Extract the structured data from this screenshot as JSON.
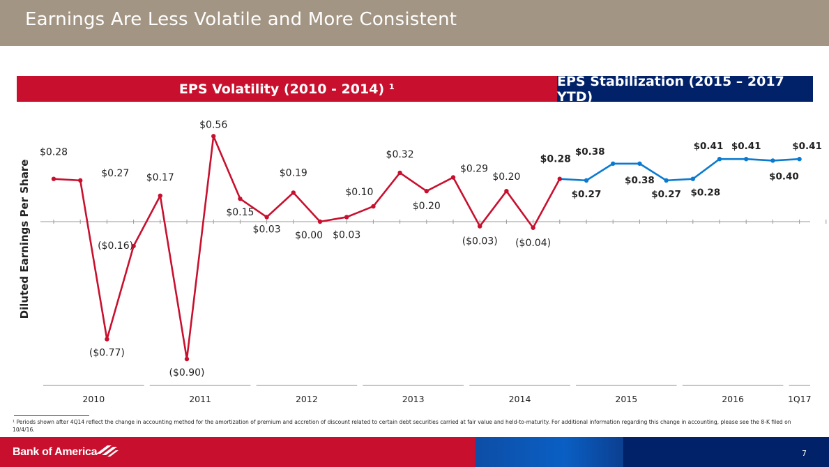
{
  "title": "Earnings Are Less Volatile and More Consistent",
  "banners": {
    "left": "EPS Volatility (2010 - 2014) ¹",
    "right": "EPS Stabilization (2015 – 2017 YTD)"
  },
  "colors": {
    "red": "#c8102e",
    "blue": "#0a7ad0",
    "navy": "#012169",
    "title_bg": "#a39583"
  },
  "chart_data": {
    "type": "line",
    "ylabel": "Diluted Earnings Per Share",
    "ylim": [
      -1.0,
      0.62
    ],
    "grid": false,
    "x_groups": [
      "2010",
      "2011",
      "2012",
      "2013",
      "2014",
      "2015",
      "2016",
      "1Q17"
    ],
    "series": [
      {
        "name": "EPS Volatility (2010 - 2014)",
        "color": "#c8102e",
        "values": [
          0.28,
          0.27,
          -0.77,
          -0.16,
          0.17,
          -0.9,
          0.56,
          0.15,
          0.03,
          0.19,
          0.0,
          0.03,
          0.1,
          0.32,
          0.2,
          0.29,
          -0.03,
          0.2,
          -0.04,
          0.28
        ],
        "labels": [
          "$0.28",
          "$0.27",
          "($0.77)",
          "($0.16)",
          "$0.17",
          "($0.90)",
          "$0.56",
          "$0.15",
          "$0.03",
          "$0.19",
          "$0.00",
          "$0.03",
          "$0.10",
          "$0.32",
          "$0.20",
          "$0.29",
          "($0.03)",
          "$0.20",
          "($0.04)",
          "$0.28"
        ]
      },
      {
        "name": "EPS Stabilization (2015 – 2017 YTD)",
        "color": "#0a7ad0",
        "values": [
          0.28,
          0.27,
          0.38,
          0.38,
          0.27,
          0.28,
          0.41,
          0.41,
          0.4,
          0.41
        ],
        "labels": [
          "",
          "$0.27",
          "$0.38",
          "$0.38",
          "$0.27",
          "$0.28",
          "$0.41",
          "$0.41",
          "$0.40",
          "$0.41"
        ]
      }
    ]
  },
  "footnote": "¹ Periods shown after 4Q14 reflect the change in accounting method for the amortization of premium and accretion of discount related to certain debt securities carried at fair value and held-to-maturity. For additional information regarding this change in accounting, please see the 8-K filed on 10/4/16.",
  "footer": {
    "logo_text": "Bank of America",
    "page_number": "7"
  }
}
